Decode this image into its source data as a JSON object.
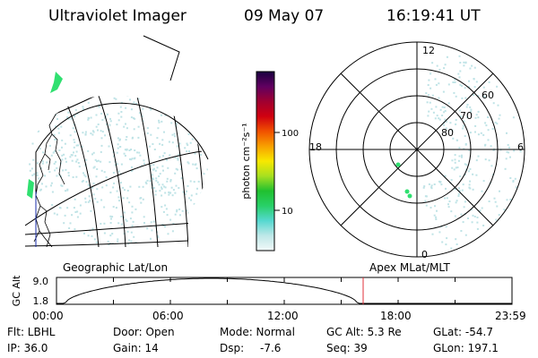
{
  "header": {
    "title": "Ultraviolet Imager",
    "date": "09 May 07",
    "time": "16:19:41 UT"
  },
  "colorbar": {
    "unit_label": "photon cm⁻²s⁻¹",
    "ticks": [
      {
        "value": "100"
      },
      {
        "value": "10"
      }
    ]
  },
  "polar_plot": {
    "mlt_labels": {
      "top": "12",
      "left": "18",
      "right": "6",
      "bottom": "0"
    },
    "lat_labels": [
      "60",
      "70",
      "80"
    ]
  },
  "altitude_panel": {
    "left_label": "Geographic Lat/Lon",
    "right_label": "Apex MLat/MLT",
    "axis_title": "GC Alt",
    "y_ticks": [
      "9.0",
      "1.8"
    ],
    "x_ticks": [
      "00:00",
      "06:00",
      "12:00",
      "18:00",
      "23:59"
    ],
    "marker_color": "#e0303a"
  },
  "info": {
    "filter": "Flt: LBHL",
    "door": "Door: Open",
    "mode": "Mode: Normal",
    "gc_alt": "GC Alt: 5.3 Re",
    "glat": "GLat: -54.7",
    "ip": "IP: 36.0",
    "gain": "Gain: 14",
    "dsp": "Dsp:",
    "dsp_value": "-7.6",
    "seq": "Seq: 39",
    "glon": "GLon: 197.1"
  },
  "colors": {
    "colorbar_stops": [
      "#f2f8f8",
      "#bfe8e8",
      "#55d8d0",
      "#28d068",
      "#20c030",
      "#a8e020",
      "#f8e800",
      "#f8a000",
      "#f05000",
      "#d00010",
      "#a00030",
      "#600060",
      "#1a0040"
    ],
    "noise": "#bfe3e6",
    "aurora_green": "#30e070"
  }
}
